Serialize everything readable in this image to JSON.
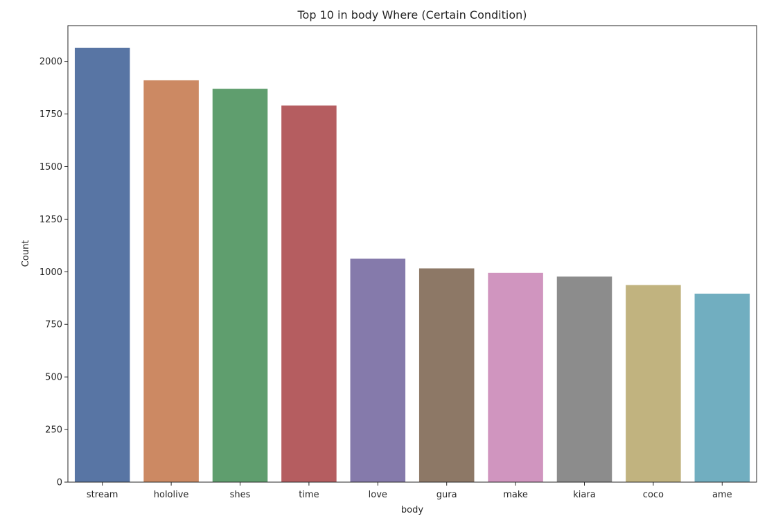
{
  "chart_data": {
    "type": "bar",
    "title": "Top 10 in body Where (Certain Condition)",
    "xlabel": "body",
    "ylabel": "Count",
    "categories": [
      "stream",
      "hololive",
      "shes",
      "time",
      "love",
      "gura",
      "make",
      "kiara",
      "coco",
      "ame"
    ],
    "values": [
      2065,
      1910,
      1870,
      1790,
      1062,
      1016,
      995,
      977,
      937,
      896
    ],
    "colors": [
      "#5875a4",
      "#cc8963",
      "#5f9e6e",
      "#b55d60",
      "#857aab",
      "#8d7866",
      "#d095bf",
      "#8c8c8c",
      "#c1b37f",
      "#71aec0"
    ],
    "ylim": [
      0,
      2170
    ],
    "yticks": [
      0,
      250,
      500,
      750,
      1000,
      1250,
      1500,
      1750,
      2000
    ],
    "grid": false,
    "legend": "none"
  }
}
